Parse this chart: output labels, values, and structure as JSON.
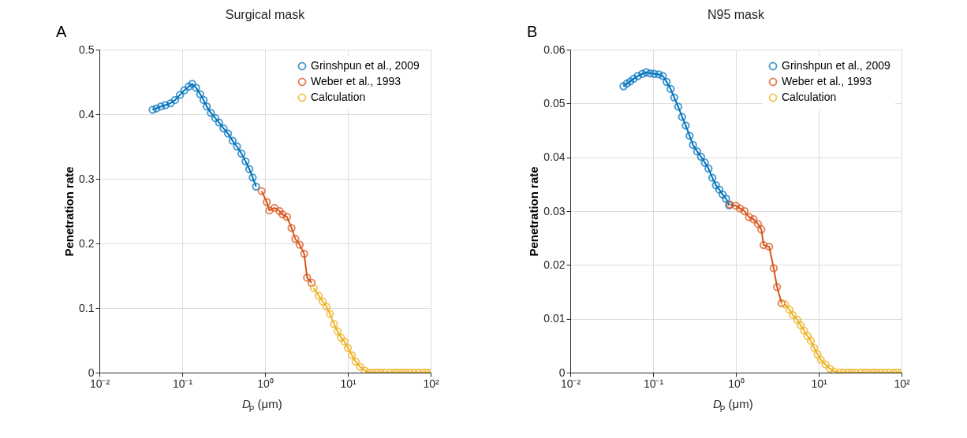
{
  "chart_data": [
    {
      "type": "line",
      "title": "Surgical mask",
      "xlabel": "D$_{P}$ (μm)",
      "ylabel": "Penetration rate",
      "annotations": [
        "A"
      ],
      "log": "x",
      "grid": true,
      "legend": "top right",
      "marker": "circle",
      "line_style": "solid",
      "xlim": [
        0.01,
        100
      ],
      "xticks": [
        {
          "value": 0.01,
          "label": "10⁻²"
        },
        {
          "value": 0.1,
          "label": "10⁻¹"
        },
        {
          "value": 1,
          "label": "10⁰"
        },
        {
          "value": 10,
          "label": "10¹"
        },
        {
          "value": 100,
          "label": "10²"
        }
      ],
      "ylim": [
        0,
        0.5
      ],
      "yticks": [
        0,
        0.1,
        0.2,
        0.3,
        0.4,
        0.5
      ],
      "series": [
        {
          "name": "Grinshpun et al., 2009",
          "color": "#0072bd",
          "x": [
            0.044,
            0.0489,
            0.0553,
            0.0626,
            0.0723,
            0.082,
            0.094,
            0.106,
            0.12,
            0.132,
            0.147,
            0.165,
            0.181,
            0.198,
            0.222,
            0.251,
            0.279,
            0.316,
            0.358,
            0.406,
            0.459,
            0.52,
            0.582,
            0.647,
            0.71,
            0.779
          ],
          "values": [
            0.407,
            0.409,
            0.412,
            0.414,
            0.417,
            0.422,
            0.43,
            0.437,
            0.443,
            0.447,
            0.441,
            0.431,
            0.422,
            0.412,
            0.402,
            0.394,
            0.387,
            0.378,
            0.37,
            0.359,
            0.35,
            0.339,
            0.327,
            0.315,
            0.302,
            0.288
          ]
        },
        {
          "name": "Weber et al., 1993",
          "color": "#d95319",
          "x": [
            0.91,
            1.05,
            1.13,
            1.3,
            1.5,
            1.63,
            1.84,
            2.09,
            2.32,
            2.62,
            2.97,
            3.22,
            3.65
          ],
          "values": [
            0.281,
            0.264,
            0.251,
            0.255,
            0.25,
            0.245,
            0.241,
            0.224,
            0.207,
            0.198,
            0.184,
            0.147,
            0.139
          ]
        },
        {
          "name": "Calculation",
          "color": "#edb120",
          "x": [
            3.88,
            4.45,
            4.98,
            5.53,
            6.08,
            6.8,
            7.55,
            8.3,
            9.1,
            10,
            11.2,
            12.4,
            14.1,
            16,
            18,
            20,
            22.5,
            25,
            28,
            32,
            36,
            40,
            45,
            50,
            56,
            63,
            71,
            80,
            89,
            100
          ],
          "values": [
            0.131,
            0.119,
            0.11,
            0.102,
            0.091,
            0.075,
            0.064,
            0.054,
            0.048,
            0.038,
            0.027,
            0.017,
            0.009,
            0.003,
            0,
            0,
            0,
            0,
            0,
            0,
            0,
            0,
            0,
            0,
            0,
            0,
            0,
            0,
            0,
            0
          ]
        }
      ]
    },
    {
      "type": "line",
      "title": "N95 mask",
      "xlabel": "D$_{P}$ (μm)",
      "ylabel": "Penetration rate",
      "annotations": [
        "B"
      ],
      "log": "x",
      "grid": true,
      "legend": "top right",
      "marker": "circle",
      "line_style": "solid",
      "xlim": [
        0.01,
        100
      ],
      "xticks": [
        {
          "value": 0.01,
          "label": "10⁻²"
        },
        {
          "value": 0.1,
          "label": "10⁻¹"
        },
        {
          "value": 1,
          "label": "10⁰"
        },
        {
          "value": 10,
          "label": "10¹"
        },
        {
          "value": 100,
          "label": "10²"
        }
      ],
      "ylim": [
        0,
        0.06
      ],
      "yticks": [
        0,
        0.01,
        0.02,
        0.03,
        0.04,
        0.05,
        0.06
      ],
      "series": [
        {
          "name": "Grinshpun et al., 2009",
          "color": "#0072bd",
          "x": [
            0.0439,
            0.0482,
            0.053,
            0.0583,
            0.0654,
            0.0742,
            0.0826,
            0.092,
            0.103,
            0.117,
            0.131,
            0.146,
            0.163,
            0.18,
            0.201,
            0.224,
            0.248,
            0.276,
            0.303,
            0.34,
            0.379,
            0.422,
            0.467,
            0.52,
            0.573,
            0.63,
            0.692,
            0.762,
            0.827
          ],
          "values": [
            0.0532,
            0.0537,
            0.0541,
            0.0546,
            0.0551,
            0.0555,
            0.0558,
            0.0556,
            0.0555,
            0.0554,
            0.0551,
            0.054,
            0.0527,
            0.0511,
            0.0494,
            0.0475,
            0.0459,
            0.044,
            0.0423,
            0.0411,
            0.0401,
            0.039,
            0.0379,
            0.0362,
            0.0348,
            0.034,
            0.0331,
            0.0323,
            0.0311
          ]
        },
        {
          "name": "Weber et al., 1993",
          "color": "#d95319",
          "x": [
            0.85,
            1.0,
            1.12,
            1.27,
            1.44,
            1.63,
            1.85,
            2.03,
            2.16,
            2.52,
            2.86,
            3.14,
            3.56
          ],
          "values": [
            0.0312,
            0.031,
            0.0305,
            0.03,
            0.0289,
            0.0285,
            0.0276,
            0.0266,
            0.0237,
            0.0234,
            0.0194,
            0.0159,
            0.0129
          ]
        },
        {
          "name": "Calculation",
          "color": "#edb120",
          "x": [
            3.91,
            4.43,
            4.87,
            5.52,
            6.06,
            6.66,
            7.31,
            8.04,
            8.83,
            9.69,
            10.6,
            12.1,
            13.7,
            15.5,
            18,
            20,
            22.5,
            25,
            28,
            32,
            36,
            40,
            45,
            50,
            56,
            63,
            71,
            80,
            89,
            100
          ],
          "values": [
            0.0127,
            0.0117,
            0.0107,
            0.0098,
            0.0088,
            0.0078,
            0.0068,
            0.0059,
            0.0046,
            0.0034,
            0.0024,
            0.0015,
            0.0007,
            0.0002,
            0,
            0,
            0,
            0,
            0,
            0,
            0,
            0,
            0,
            0,
            0,
            0,
            0,
            0,
            0,
            0
          ]
        }
      ]
    }
  ]
}
